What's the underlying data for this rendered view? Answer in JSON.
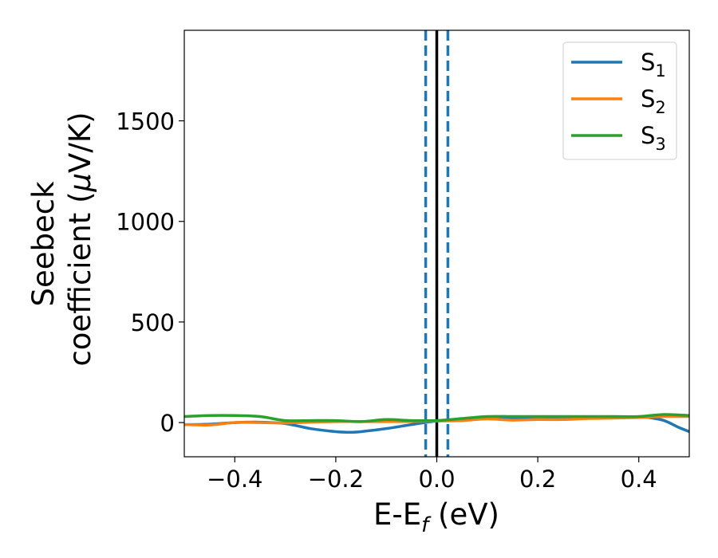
{
  "chart_data": {
    "type": "line",
    "xlabel": {
      "main": "E-E",
      "sub": "f",
      "rest": " (eV)"
    },
    "ylabel": {
      "line1": "Seebeck",
      "line2": "coefficient  (",
      "mu": "μ",
      "line2_rest": "V/K)"
    },
    "xlim": [
      -0.5,
      0.5
    ],
    "ylim": [
      -170,
      1950
    ],
    "xticks": [
      -0.4,
      -0.2,
      0.0,
      0.2,
      0.4
    ],
    "xtick_labels": [
      "−0.4",
      "−0.2",
      "0.0",
      "0.2",
      "0.4"
    ],
    "yticks": [
      0,
      500,
      1000,
      1500
    ],
    "ytick_labels": [
      "0",
      "500",
      "1000",
      "1500"
    ],
    "grid": false,
    "legend_position": "top-right",
    "vlines": [
      {
        "x": 0.0,
        "style": "solid",
        "color": "#000000"
      },
      {
        "x": -0.022,
        "style": "dashed",
        "color": "#1f77b4"
      },
      {
        "x": 0.022,
        "style": "dashed",
        "color": "#1f77b4"
      }
    ],
    "series": [
      {
        "name": "S",
        "sub": "1",
        "color": "#1f77b4",
        "x": [
          -0.5,
          -0.45,
          -0.4,
          -0.35,
          -0.3,
          -0.25,
          -0.2,
          -0.17,
          -0.15,
          -0.1,
          -0.05,
          0.0,
          0.05,
          0.1,
          0.15,
          0.2,
          0.25,
          0.3,
          0.35,
          0.4,
          0.42,
          0.45,
          0.48,
          0.5
        ],
        "y": [
          -10,
          -8,
          0,
          2,
          -5,
          -30,
          -45,
          -48,
          -45,
          -30,
          -10,
          8,
          15,
          20,
          22,
          25,
          25,
          25,
          26,
          28,
          25,
          10,
          -25,
          -45
        ]
      },
      {
        "name": "S",
        "sub": "2",
        "color": "#ff7f0e",
        "x": [
          -0.5,
          -0.45,
          -0.4,
          -0.35,
          -0.3,
          -0.25,
          -0.2,
          -0.15,
          -0.1,
          -0.05,
          0.0,
          0.05,
          0.1,
          0.15,
          0.2,
          0.25,
          0.3,
          0.35,
          0.4,
          0.45,
          0.5
        ],
        "y": [
          -10,
          -12,
          0,
          0,
          -2,
          2,
          5,
          5,
          5,
          5,
          8,
          10,
          18,
          12,
          15,
          15,
          20,
          22,
          25,
          30,
          30
        ]
      },
      {
        "name": "S",
        "sub": "3",
        "color": "#2ca02c",
        "x": [
          -0.5,
          -0.45,
          -0.4,
          -0.35,
          -0.3,
          -0.25,
          -0.2,
          -0.15,
          -0.1,
          -0.05,
          0.0,
          0.05,
          0.1,
          0.15,
          0.2,
          0.25,
          0.3,
          0.35,
          0.4,
          0.45,
          0.5
        ],
        "y": [
          30,
          35,
          35,
          30,
          10,
          10,
          10,
          5,
          15,
          10,
          10,
          20,
          30,
          30,
          30,
          30,
          30,
          30,
          30,
          40,
          35
        ]
      }
    ]
  }
}
